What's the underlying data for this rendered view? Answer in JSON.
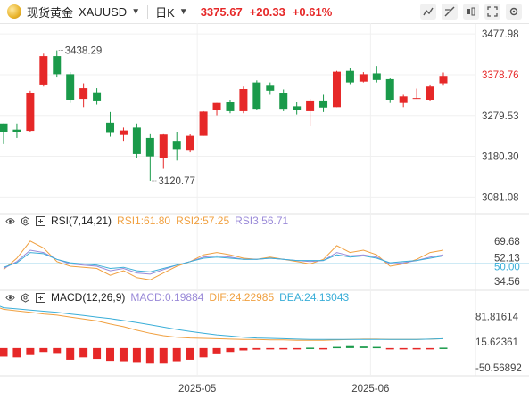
{
  "header": {
    "name": "现货黄金",
    "code": "XAUUSD",
    "period": "日K",
    "price": "3375.67",
    "change": "+20.33",
    "change_pct": "+0.61%"
  },
  "colors": {
    "up": "#e62828",
    "down": "#1a9a4a",
    "accent_up": "#e62828",
    "rsi1": "#f0a040",
    "rsi2": "#f4b27a",
    "rsi3": "#9a8ad8",
    "rsi_base": "#3aaed8",
    "macd_dif": "#f0a040",
    "macd_dea": "#3aaed8"
  },
  "chart_data": [
    {
      "type": "candlestick",
      "title": "现货黄金 XAUUSD 日K",
      "ylim": [
        3045,
        3500
      ],
      "y_ticks": [
        "3477.98",
        "3378.76",
        "3279.53",
        "3180.30",
        "3081.08"
      ],
      "y_tick_values": [
        3477.98,
        3378.76,
        3279.53,
        3180.3,
        3081.08
      ],
      "x_ticks": [
        "2025-05",
        "2025-06"
      ],
      "annotations": {
        "high": "3438.29",
        "low": "3120.77"
      },
      "candles": [
        {
          "o": 3260,
          "h": 3260,
          "l": 3210,
          "c": 3240
        },
        {
          "o": 3245,
          "h": 3260,
          "l": 3225,
          "c": 3240
        },
        {
          "o": 3242,
          "h": 3340,
          "l": 3240,
          "c": 3334
        },
        {
          "o": 3355,
          "h": 3430,
          "l": 3350,
          "c": 3424
        },
        {
          "o": 3424,
          "h": 3438,
          "l": 3372,
          "c": 3380
        },
        {
          "o": 3380,
          "h": 3385,
          "l": 3310,
          "c": 3318
        },
        {
          "o": 3320,
          "h": 3358,
          "l": 3300,
          "c": 3346
        },
        {
          "o": 3336,
          "h": 3346,
          "l": 3306,
          "c": 3316
        },
        {
          "o": 3262,
          "h": 3288,
          "l": 3228,
          "c": 3239
        },
        {
          "o": 3232,
          "h": 3250,
          "l": 3218,
          "c": 3243
        },
        {
          "o": 3250,
          "h": 3260,
          "l": 3176,
          "c": 3186
        },
        {
          "o": 3225,
          "h": 3236,
          "l": 3121,
          "c": 3180
        },
        {
          "o": 3175,
          "h": 3236,
          "l": 3150,
          "c": 3233
        },
        {
          "o": 3218,
          "h": 3240,
          "l": 3170,
          "c": 3198
        },
        {
          "o": 3194,
          "h": 3235,
          "l": 3190,
          "c": 3230
        },
        {
          "o": 3230,
          "h": 3290,
          "l": 3230,
          "c": 3289
        },
        {
          "o": 3294,
          "h": 3310,
          "l": 3280,
          "c": 3310
        },
        {
          "o": 3312,
          "h": 3318,
          "l": 3285,
          "c": 3290
        },
        {
          "o": 3290,
          "h": 3350,
          "l": 3285,
          "c": 3344
        },
        {
          "o": 3360,
          "h": 3365,
          "l": 3292,
          "c": 3296
        },
        {
          "o": 3352,
          "h": 3360,
          "l": 3330,
          "c": 3340
        },
        {
          "o": 3335,
          "h": 3343,
          "l": 3290,
          "c": 3296
        },
        {
          "o": 3302,
          "h": 3312,
          "l": 3282,
          "c": 3292
        },
        {
          "o": 3290,
          "h": 3320,
          "l": 3255,
          "c": 3316
        },
        {
          "o": 3316,
          "h": 3330,
          "l": 3288,
          "c": 3299
        },
        {
          "o": 3300,
          "h": 3388,
          "l": 3300,
          "c": 3386
        },
        {
          "o": 3388,
          "h": 3396,
          "l": 3356,
          "c": 3360
        },
        {
          "o": 3362,
          "h": 3385,
          "l": 3360,
          "c": 3380
        },
        {
          "o": 3382,
          "h": 3400,
          "l": 3360,
          "c": 3366
        },
        {
          "o": 3368,
          "h": 3370,
          "l": 3310,
          "c": 3318
        },
        {
          "o": 3310,
          "h": 3330,
          "l": 3300,
          "c": 3326
        },
        {
          "o": 3322,
          "h": 3345,
          "l": 3320,
          "c": 3322
        },
        {
          "o": 3318,
          "h": 3355,
          "l": 3316,
          "c": 3350
        },
        {
          "o": 3358,
          "h": 3384,
          "l": 3352,
          "c": 3376
        }
      ]
    },
    {
      "type": "line",
      "title": "RSI(7,14,21)",
      "series_labels": [
        "RSI1:61.80",
        "RSI2:57.25",
        "RSI3:56.71"
      ],
      "ylim": [
        30,
        80
      ],
      "y_ticks": [
        "69.68",
        "52.13",
        "50.00",
        "34.56"
      ],
      "y_tick_values": [
        69.68,
        52.13,
        50.0,
        34.56
      ],
      "reference": 50.0,
      "series": [
        {
          "name": "RSI1",
          "values": [
            45,
            55,
            70,
            64,
            52,
            48,
            47,
            46,
            40,
            44,
            38,
            36,
            42,
            48,
            52,
            58,
            60,
            58,
            55,
            54,
            56,
            54,
            52,
            50,
            54,
            66,
            60,
            62,
            58,
            48,
            50,
            54,
            60,
            62
          ]
        },
        {
          "name": "RSI2",
          "values": [
            46,
            52,
            62,
            60,
            54,
            50,
            49,
            48,
            44,
            46,
            42,
            41,
            45,
            49,
            52,
            56,
            57,
            56,
            54,
            54,
            55,
            54,
            53,
            52,
            53,
            60,
            57,
            58,
            56,
            50,
            51,
            53,
            56,
            58
          ]
        },
        {
          "name": "RSI3",
          "values": [
            47,
            51,
            60,
            59,
            54,
            51,
            50,
            49,
            46,
            47,
            44,
            43,
            46,
            49,
            52,
            55,
            56,
            55,
            54,
            54,
            55,
            54,
            53,
            53,
            53,
            58,
            56,
            57,
            55,
            51,
            52,
            53,
            55,
            57
          ]
        }
      ]
    },
    {
      "type": "bar+line",
      "title": "MACD(12,26,9)",
      "series_labels": [
        "MACD:0.19884",
        "DIF:24.22985",
        "DEA:24.13043"
      ],
      "ylim": [
        -60,
        110
      ],
      "y_ticks": [
        "81.81614",
        "15.62361",
        "-50.56892"
      ],
      "y_tick_values": [
        81.81614,
        15.62361,
        -50.56892
      ],
      "histogram": [
        -22,
        -24,
        -18,
        -10,
        -15,
        -30,
        -24,
        -28,
        -35,
        -36,
        -38,
        -40,
        -40,
        -36,
        -30,
        -24,
        -16,
        -10,
        -6,
        -4,
        -2,
        -1,
        -1,
        1,
        -1,
        3,
        5,
        4,
        3,
        -1,
        -3,
        -2,
        -1,
        1
      ],
      "dif": [
        100,
        96,
        92,
        88,
        85,
        80,
        75,
        70,
        62,
        55,
        46,
        38,
        32,
        28,
        26,
        25,
        24,
        23,
        22,
        22,
        21,
        21,
        20,
        20,
        20,
        21,
        22,
        23,
        23,
        22,
        22,
        22,
        23,
        24
      ],
      "dea": [
        104,
        101,
        98,
        95,
        92,
        88,
        84,
        80,
        76,
        71,
        66,
        60,
        54,
        48,
        43,
        38,
        34,
        31,
        28,
        26,
        25,
        24,
        23,
        22,
        22,
        22,
        22,
        22,
        22,
        22,
        22,
        22,
        23,
        24
      ]
    }
  ]
}
